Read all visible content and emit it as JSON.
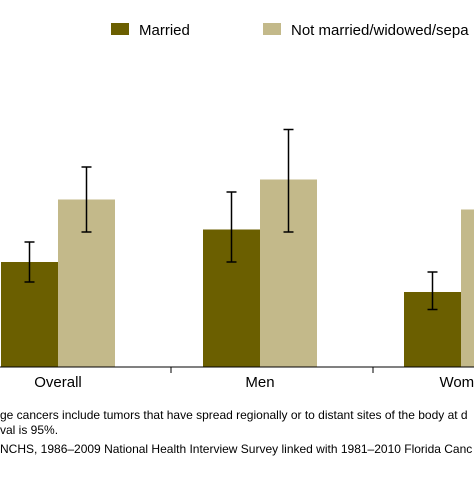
{
  "chart_data": {
    "type": "bar",
    "categories": [
      "Overall",
      "Men",
      "Wome"
    ],
    "series": [
      {
        "name": "Married",
        "color": "#6b5f00",
        "values": [
          42,
          55,
          30
        ],
        "error_low": [
          34,
          42,
          23
        ],
        "error_high": [
          50,
          70,
          38
        ]
      },
      {
        "name": "Not married/widowed/sepa",
        "color": "#c3b98a",
        "values": [
          67,
          75,
          63
        ],
        "error_low": [
          54,
          54,
          null
        ],
        "error_high": [
          80,
          95,
          null
        ]
      }
    ],
    "ylim": [
      0,
      120
    ],
    "grid": false,
    "legend_position": "top"
  },
  "notes": [
    "ge cancers include tumors that have spread regionally or to distant sites of the body at d",
    "val is 95%.",
    "NCHS, 1986–2009 National Health Interview Survey linked with 1981–2010 Florida Canc"
  ]
}
